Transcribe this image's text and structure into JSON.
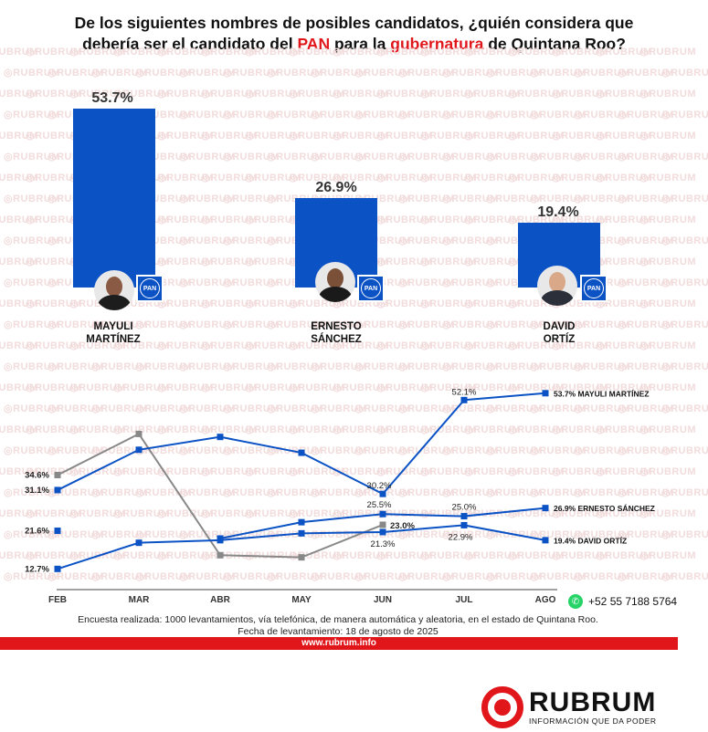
{
  "title": {
    "part1": "De los siguientes nombres de posibles candidatos, ¿quién considera que",
    "part2": "debería ser el candidato del ",
    "highlight1": "PAN",
    "part3": " para la ",
    "highlight2": "gubernatura",
    "part4": " de Quintana Roo?"
  },
  "watermark_text": "RUBRUM",
  "colors": {
    "bar": "#0b52c5",
    "line_blue": "#0b52c5",
    "line_gray": "#888888",
    "accent_red": "#e0161b"
  },
  "chart_data": [
    {
      "type": "bar",
      "categories": [
        "MAYULI MARTÍNEZ",
        "ERNESTO SÁNCHEZ",
        "DAVID ORTÍZ"
      ],
      "values": [
        53.7,
        26.9,
        19.4
      ],
      "value_labels": [
        "53.7%",
        "26.9%",
        "19.4%"
      ],
      "candidates": [
        {
          "line1": "MAYULI",
          "line2": "MARTÍNEZ",
          "party": "PAN"
        },
        {
          "line1": "ERNESTO",
          "line2": "SÁNCHEZ",
          "party": "PAN"
        },
        {
          "line1": "DAVID",
          "line2": "ORTÍZ",
          "party": "PAN"
        }
      ],
      "ylim": [
        0,
        60
      ]
    },
    {
      "type": "line",
      "categories": [
        "FEB",
        "MAR",
        "ABR",
        "MAY",
        "JUN",
        "JUL",
        "AGO"
      ],
      "ylim": [
        10,
        56
      ],
      "series": [
        {
          "name": "MAYULI MARTÍNEZ",
          "values": [
            31.1,
            40.5,
            43.5,
            39.8,
            30.2,
            52.1,
            53.7
          ],
          "end_label": "53.7% MAYULI MARTÍNEZ"
        },
        {
          "name": "ERNESTO SÁNCHEZ",
          "values": [
            21.6,
            null,
            19.8,
            23.6,
            25.5,
            25.0,
            26.9
          ],
          "end_label": "26.9% ERNESTO SÁNCHEZ"
        },
        {
          "name": "DAVID ORTÍZ",
          "values": [
            12.7,
            18.8,
            19.4,
            21.0,
            21.3,
            22.9,
            19.4
          ],
          "end_label": "19.4% DAVID ORTÍZ"
        },
        {
          "name": "gray",
          "values": [
            34.6,
            44.2,
            15.9,
            15.4,
            23.0,
            null,
            null
          ]
        }
      ],
      "labels": [
        {
          "text": "34.6%",
          "at": [
            "FEB",
            34.6
          ]
        },
        {
          "text": "31.1%",
          "at": [
            "FEB",
            31.1
          ]
        },
        {
          "text": "21.6%",
          "at": [
            "FEB",
            21.6
          ]
        },
        {
          "text": "12.7%",
          "at": [
            "FEB",
            12.7
          ]
        },
        {
          "text": "30.2%",
          "at": [
            "JUN",
            30.2
          ]
        },
        {
          "text": "25.5%",
          "at": [
            "JUN",
            25.5
          ]
        },
        {
          "text": "23.0%",
          "at": [
            "JUN",
            23.0
          ]
        },
        {
          "text": "21.3%",
          "at": [
            "JUN",
            21.3
          ]
        },
        {
          "text": "52.1%",
          "at": [
            "JUL",
            52.1
          ]
        },
        {
          "text": "25.0%",
          "at": [
            "JUL",
            25.0
          ]
        },
        {
          "text": "22.9%",
          "at": [
            "JUL",
            22.9
          ]
        }
      ]
    }
  ],
  "footer": {
    "note1": "Encuesta realizada: 1000 levantamientos, vía telefónica, de manera automática y aleatoria, en el estado de Quintana Roo.",
    "note2": "Fecha de levantamiento: 18 de agosto de 2025",
    "phone": "+52 55 7188 5764",
    "url": "www.rubrum.info"
  },
  "logo": {
    "name": "RUBRUM",
    "tagline": "INFORMACIÓN QUE DA PODER"
  }
}
